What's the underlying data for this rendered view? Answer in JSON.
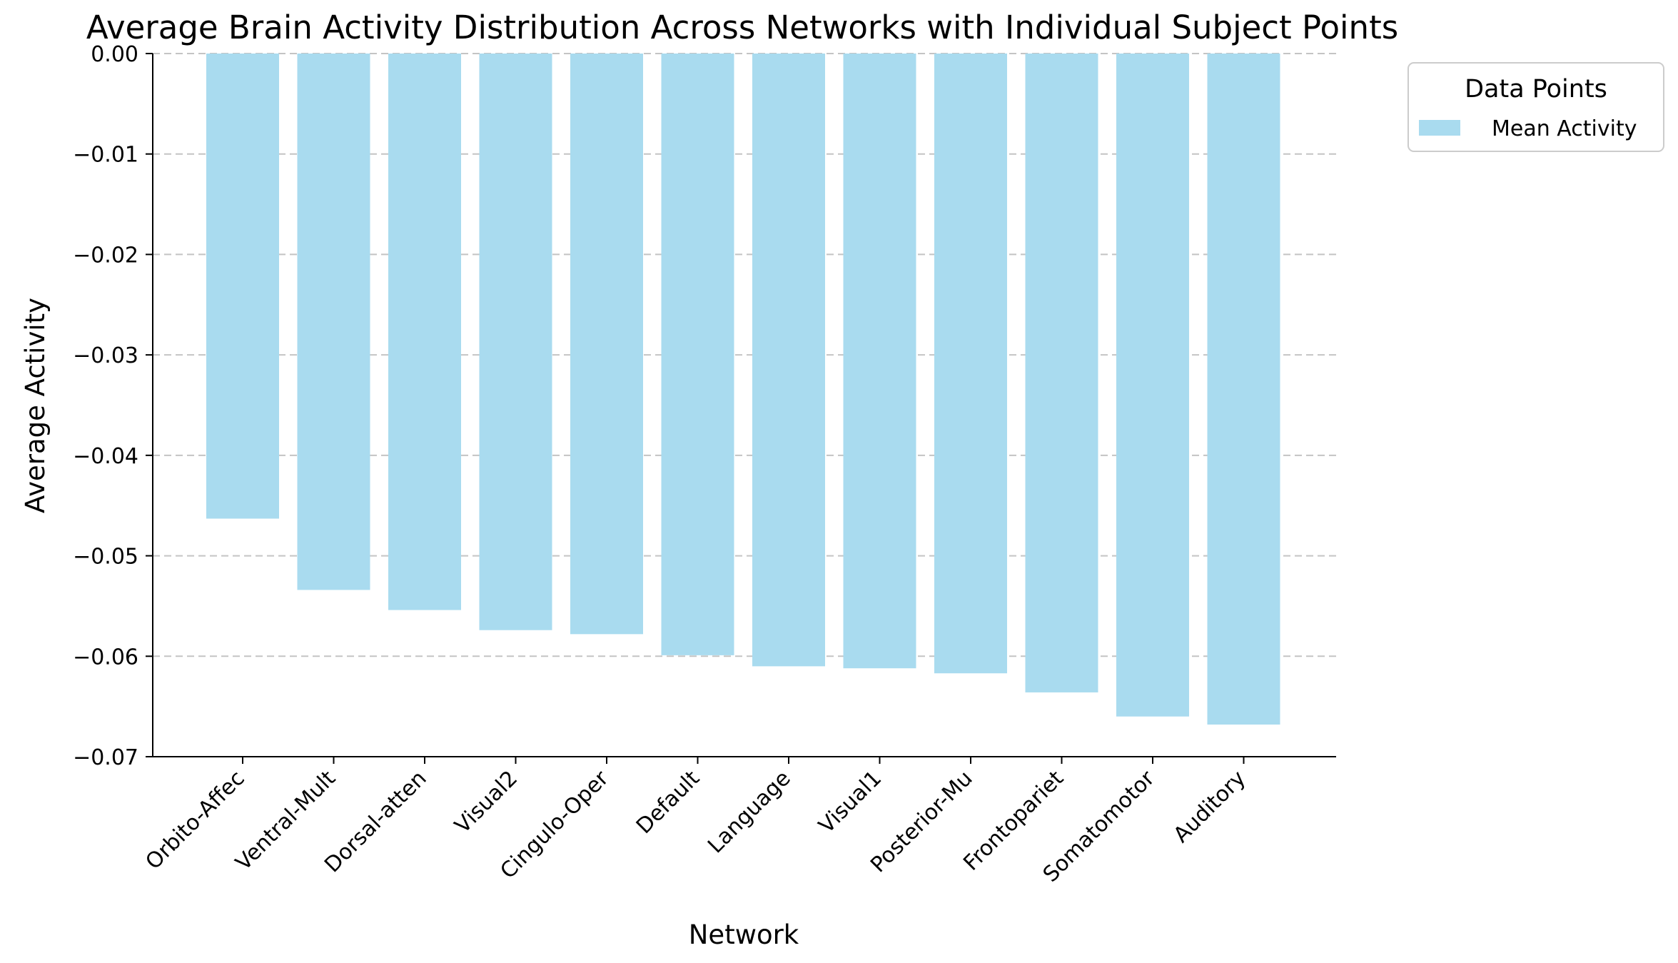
{
  "chart_data": {
    "type": "bar",
    "title": "Average Brain Activity Distribution Across Networks with Individual Subject Points",
    "xlabel": "Network",
    "ylabel": "Average Activity",
    "categories": [
      "Orbito-Affec",
      "Ventral-Mult",
      "Dorsal-atten",
      "Visual2",
      "Cingulo-Oper",
      "Default",
      "Language",
      "Visual1",
      "Posterior-Mu",
      "Frontopariet",
      "Somatomotor",
      "Auditory"
    ],
    "series": [
      {
        "name": "Mean Activity",
        "color": "#a9dbef",
        "values": [
          -0.0463,
          -0.0534,
          -0.0554,
          -0.0574,
          -0.0578,
          -0.0599,
          -0.061,
          -0.0612,
          -0.0617,
          -0.0636,
          -0.066,
          -0.0668
        ]
      }
    ],
    "ylim": [
      -0.07,
      0.0
    ],
    "yticks": [
      0.0,
      -0.01,
      -0.02,
      -0.03,
      -0.04,
      -0.05,
      -0.06,
      -0.07
    ],
    "ytick_labels": [
      "0.00",
      "−0.01",
      "−0.02",
      "−0.03",
      "−0.04",
      "−0.05",
      "−0.06",
      "−0.07"
    ],
    "grid": "y-dashed",
    "legend": {
      "title": "Data Points",
      "placement": "outside-upper-right",
      "entries": [
        "Mean Activity"
      ]
    }
  }
}
